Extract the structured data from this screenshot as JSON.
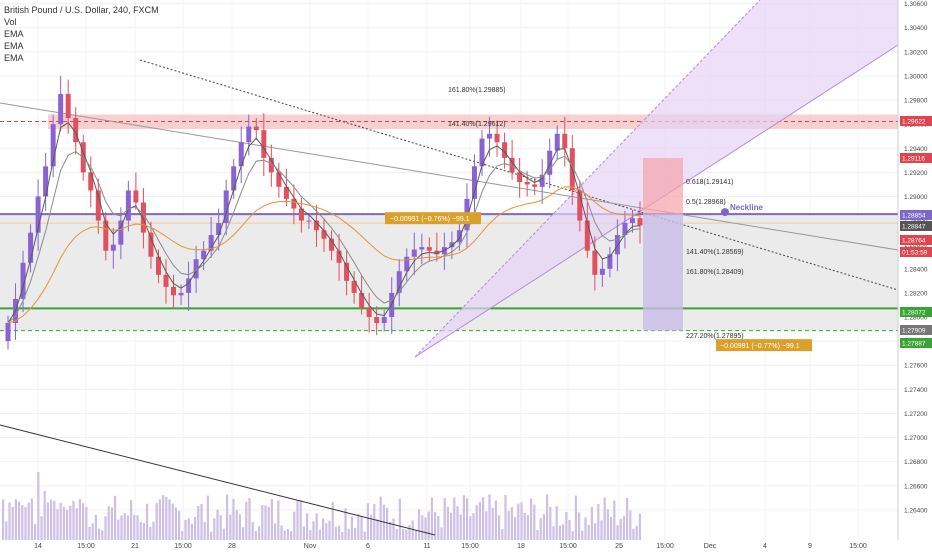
{
  "header": {
    "symbol_line": "British Pound / U.S. Dollar, 240, FXCM",
    "indicators": [
      "Vol",
      "EMA",
      "EMA",
      "EMA"
    ]
  },
  "colors": {
    "bull": "#8a63d2",
    "bear": "#e0505e",
    "resistance_band": "#f5c4c4",
    "resistance_line": "#e0454f",
    "neckline": "#7b68c8",
    "support_line": "#3aa335",
    "target_line": "#3aa335",
    "channel_fill": "#e6d3f5",
    "volume": "#cdbfe6",
    "ema_fast": "#5a5a5a",
    "ema_slow": "#e8913a",
    "price_tag_bg": "#d9a02b",
    "label_bg": "#d9a02b"
  },
  "chart_data": {
    "type": "candlestick",
    "symbol": "British Pound / U.S. Dollar",
    "timeframe": "240",
    "y_axis": {
      "min": 1.2615,
      "max": 1.3063,
      "ticks": [
        1.306,
        1.304,
        1.302,
        1.3,
        1.298,
        1.296,
        1.294,
        1.292,
        1.29,
        1.288,
        1.286,
        1.284,
        1.282,
        1.28,
        1.278,
        1.276,
        1.274,
        1.272,
        1.27,
        1.268,
        1.266,
        1.264
      ]
    },
    "x_axis": {
      "labels": [
        "14",
        "15:00",
        "21",
        "15:00",
        "28",
        "Nov",
        "6",
        "11",
        "15:00",
        "18",
        "15:00",
        "25",
        "15:00",
        "Dec",
        "4",
        "9",
        "15:00"
      ]
    },
    "price_tags": [
      {
        "value": "1.29622",
        "color": "#e0454f"
      },
      {
        "value": "1.29116",
        "color": "#e0454f"
      },
      {
        "value": "1.28854",
        "color": "#7b68c8"
      },
      {
        "value": "1.28847",
        "color": "#555555"
      },
      {
        "value": "1.28764",
        "color": "#e0454f"
      },
      {
        "value": "01:53:59",
        "color": "#e0454f"
      },
      {
        "value": "1.28072",
        "color": "#3aa335"
      },
      {
        "value": "1.27909",
        "color": "#777777"
      },
      {
        "value": "1.27887",
        "color": "#3aa335"
      }
    ],
    "levels": {
      "resistance": 1.29622,
      "neckline": 1.28854,
      "support": 1.28072,
      "target": 1.27887
    },
    "annotations": [
      {
        "text": "161.80%(1.29885)",
        "value": 1.29885
      },
      {
        "text": "141.40%(1.29612)",
        "value": 1.29612
      },
      {
        "text": "0.618(1.29141)",
        "value": 1.29141
      },
      {
        "text": "0.5(1.28968)",
        "value": 1.28968
      },
      {
        "text": "141.40%(1.28569)",
        "value": 1.28569
      },
      {
        "text": "161.80%(1.28409)",
        "value": 1.28409
      },
      {
        "text": "227.20%(1.27895)",
        "value": 1.27895
      },
      {
        "text": "Neckline",
        "value": 1.28854
      },
      {
        "text": "−0.00991 (−0.76%) −99.1",
        "value": 1.2882
      },
      {
        "text": "−0.00991 (−0.77%) −99.1",
        "value": 1.2775
      }
    ],
    "closes": [
      1.2795,
      1.2815,
      1.2845,
      1.287,
      1.29,
      1.2925,
      1.296,
      1.2985,
      1.2965,
      1.2945,
      1.292,
      1.2905,
      1.288,
      1.2855,
      1.286,
      1.288,
      1.2905,
      1.2895,
      1.287,
      1.285,
      1.2835,
      1.2825,
      1.2818,
      1.282,
      1.2832,
      1.2848,
      1.2855,
      1.2868,
      1.2878,
      1.2905,
      1.2925,
      1.2945,
      1.2958,
      1.2955,
      1.2932,
      1.292,
      1.2908,
      1.2898,
      1.289,
      1.288,
      1.288,
      1.2872,
      1.2865,
      1.2855,
      1.2845,
      1.283,
      1.282,
      1.2808,
      1.28,
      1.2795,
      1.28,
      1.282,
      1.2838,
      1.285,
      1.2856,
      1.2858,
      1.2855,
      1.2852,
      1.2858,
      1.2862,
      1.2872,
      1.2898,
      1.2925,
      1.2948,
      1.2952,
      1.2945,
      1.2932,
      1.292,
      1.2912,
      1.291,
      1.2908,
      1.2918,
      1.2938,
      1.2952,
      1.294,
      1.2905,
      1.288,
      1.2855,
      1.2835,
      1.284,
      1.2852,
      1.2868,
      1.2878,
      1.2882,
      1.2876
    ]
  }
}
